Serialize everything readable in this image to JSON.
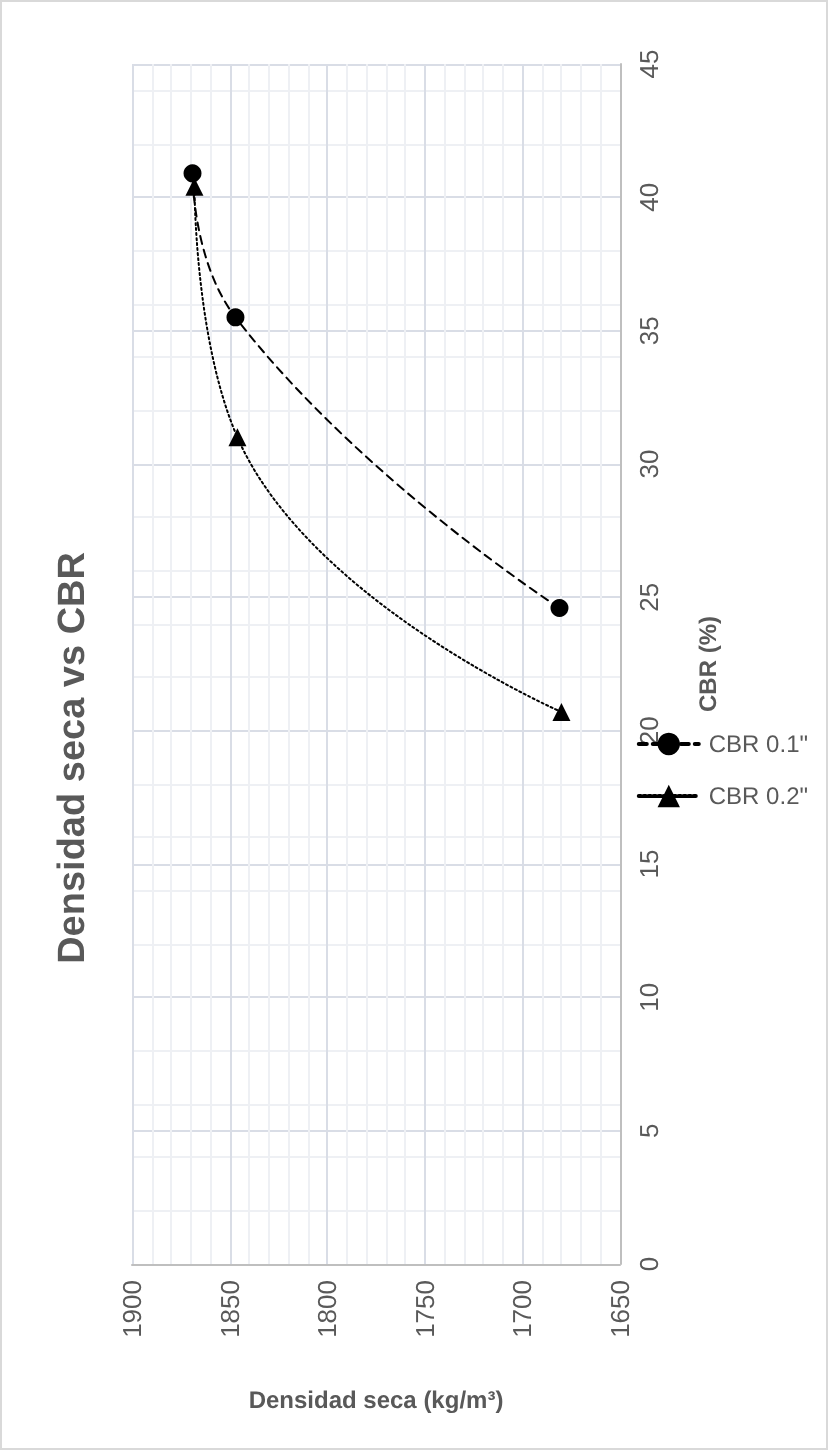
{
  "chart_data": {
    "type": "line",
    "title": "Densidad seca vs CBR",
    "xlabel": "Densidad seca (kg/m³)",
    "ylabel": "CBR (%)",
    "xlim": [
      1900,
      1650
    ],
    "xticks": [
      1900,
      1850,
      1800,
      1750,
      1700,
      1650
    ],
    "ylim": [
      0,
      45
    ],
    "yticks": [
      0,
      5,
      10,
      15,
      20,
      25,
      30,
      35,
      40,
      45
    ],
    "grid": true,
    "legend": "right",
    "series": [
      {
        "name": "CBR 0.1\"",
        "color": "#000000",
        "marker": "circle",
        "line_style": "dashed",
        "x": [
          1681,
          1847,
          1869
        ],
        "values": [
          24.6,
          35.5,
          40.9
        ]
      },
      {
        "name": "CBR 0.2\"",
        "color": "#000000",
        "marker": "triangle",
        "line_style": "dotted",
        "x": [
          1680,
          1846,
          1868
        ],
        "values": [
          20.7,
          31.0,
          40.4
        ]
      }
    ]
  }
}
